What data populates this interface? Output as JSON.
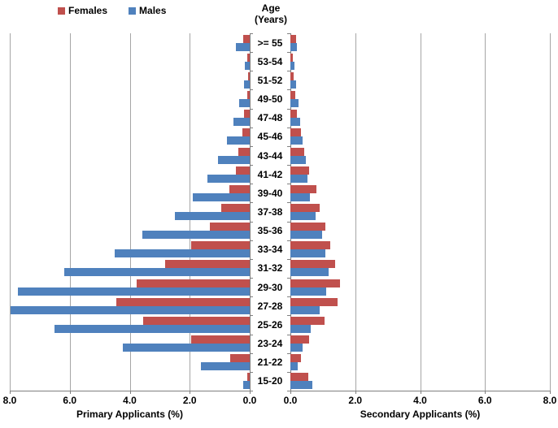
{
  "legend": {
    "females": "Females",
    "males": "Males"
  },
  "center_title": {
    "line1": "Age",
    "line2": "(Years)"
  },
  "colors": {
    "females": "#C0504D",
    "males": "#4F81BD",
    "gridline": "#A6A6A6",
    "axis": "#7F7F7F",
    "text": "#000000"
  },
  "chart_data": {
    "type": "bar",
    "layout": "population-pyramid",
    "grid": true,
    "legend_position": "top-left",
    "age_groups": [
      ">= 55",
      "53-54",
      "51-52",
      "49-50",
      "47-48",
      "45-46",
      "43-44",
      "41-42",
      "39-40",
      "37-38",
      "35-36",
      "33-34",
      "31-32",
      "29-30",
      "27-28",
      "25-26",
      "23-24",
      "21-22",
      "15-20"
    ],
    "panels": [
      {
        "side": "left",
        "axis_label": "Primary Applicants (%)",
        "xlim": [
          0,
          8
        ],
        "tick_labels": [
          "8.0",
          "6.0",
          "4.0",
          "2.0",
          "0.0"
        ],
        "series": [
          {
            "name": "Females",
            "color": "#C0504D",
            "values": [
              0.21,
              0.07,
              0.06,
              0.09,
              0.2,
              0.25,
              0.38,
              0.47,
              0.68,
              0.94,
              1.32,
              1.96,
              2.83,
              3.77,
              4.45,
              3.56,
              1.96,
              0.64,
              0.08
            ]
          },
          {
            "name": "Males",
            "color": "#4F81BD",
            "values": [
              0.47,
              0.15,
              0.2,
              0.34,
              0.54,
              0.77,
              1.05,
              1.4,
              1.9,
              2.5,
              3.59,
              4.49,
              6.17,
              7.72,
              7.96,
              6.51,
              4.22,
              1.64,
              0.21
            ]
          }
        ]
      },
      {
        "side": "right",
        "axis_label": "Secondary Applicants (%)",
        "xlim": [
          0,
          8
        ],
        "tick_labels": [
          "0.0",
          "2.0",
          "4.0",
          "6.0",
          "8.0"
        ],
        "series": [
          {
            "name": "Females",
            "color": "#C0504D",
            "values": [
              0.18,
              0.07,
              0.09,
              0.15,
              0.2,
              0.33,
              0.42,
              0.57,
              0.79,
              0.9,
              1.07,
              1.24,
              1.39,
              1.53,
              1.45,
              1.05,
              0.58,
              0.32,
              0.55
            ]
          },
          {
            "name": "Males",
            "color": "#4F81BD",
            "values": [
              0.21,
              0.12,
              0.18,
              0.26,
              0.3,
              0.38,
              0.47,
              0.53,
              0.59,
              0.78,
              0.97,
              1.09,
              1.19,
              1.11,
              0.9,
              0.63,
              0.38,
              0.23,
              0.67
            ]
          }
        ]
      }
    ]
  }
}
